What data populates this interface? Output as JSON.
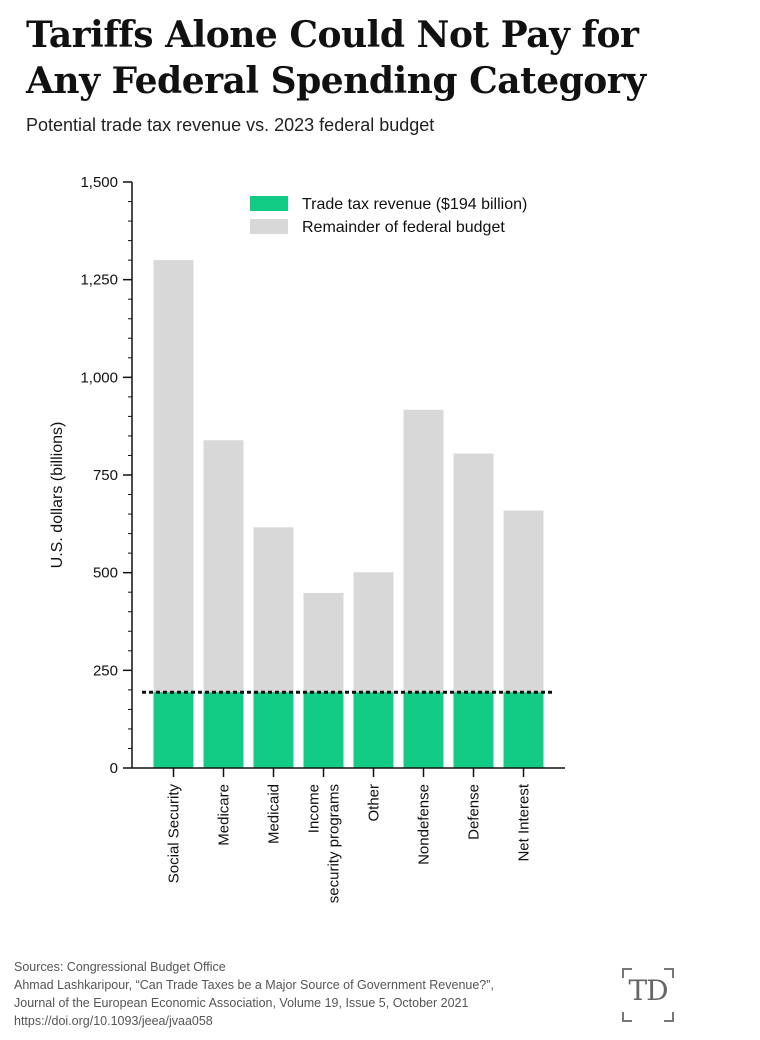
{
  "title_line1": "Tariffs Alone Could Not Pay for",
  "title_line2": "Any Federal Spending Category",
  "subtitle": "Potential trade tax revenue vs. 2023 federal budget",
  "colors": {
    "trade": "#12cc85",
    "remainder": "#d8d8d8",
    "axis": "#111111"
  },
  "chart_data": {
    "type": "bar",
    "stacked": true,
    "categories": [
      [
        "Social Security"
      ],
      [
        "Medicare"
      ],
      [
        "Medicaid"
      ],
      [
        "Income",
        "security programs"
      ],
      [
        "Other"
      ],
      [
        "Nondefense"
      ],
      [
        "Defense"
      ],
      [
        "Net Interest"
      ]
    ],
    "series": [
      {
        "name": "Trade tax revenue ($194 billion)",
        "values": [
          194,
          194,
          194,
          194,
          194,
          194,
          194,
          194
        ]
      },
      {
        "name": "Remainder of federal budget",
        "values": [
          1106,
          645,
          422,
          254,
          307,
          723,
          611,
          465
        ]
      }
    ],
    "totals": [
      1300,
      839,
      616,
      448,
      501,
      917,
      805,
      659
    ],
    "reference_line": 194,
    "ylabel": "U.S. dollars (billions)",
    "ylim": [
      0,
      1500
    ],
    "yticks": [
      0,
      250,
      500,
      750,
      1000,
      1250,
      1500
    ],
    "ytick_labels": [
      "0",
      "250",
      "500",
      "750",
      "1,000",
      "1,250",
      "1,500"
    ],
    "legend_position": "top-right",
    "grid": false
  },
  "sources": {
    "line1": "Sources: Congressional Budget Office",
    "line2": "Ahmad Lashkaripour, “Can Trade Taxes be a Major Source of Government Revenue?”,",
    "line3": "Journal of the European Economic Association, Volume 19, Issue 5, October 2021",
    "line4": "https://doi.org/10.1093/jeea/jvaa058"
  },
  "logo": {
    "text": "TD"
  }
}
